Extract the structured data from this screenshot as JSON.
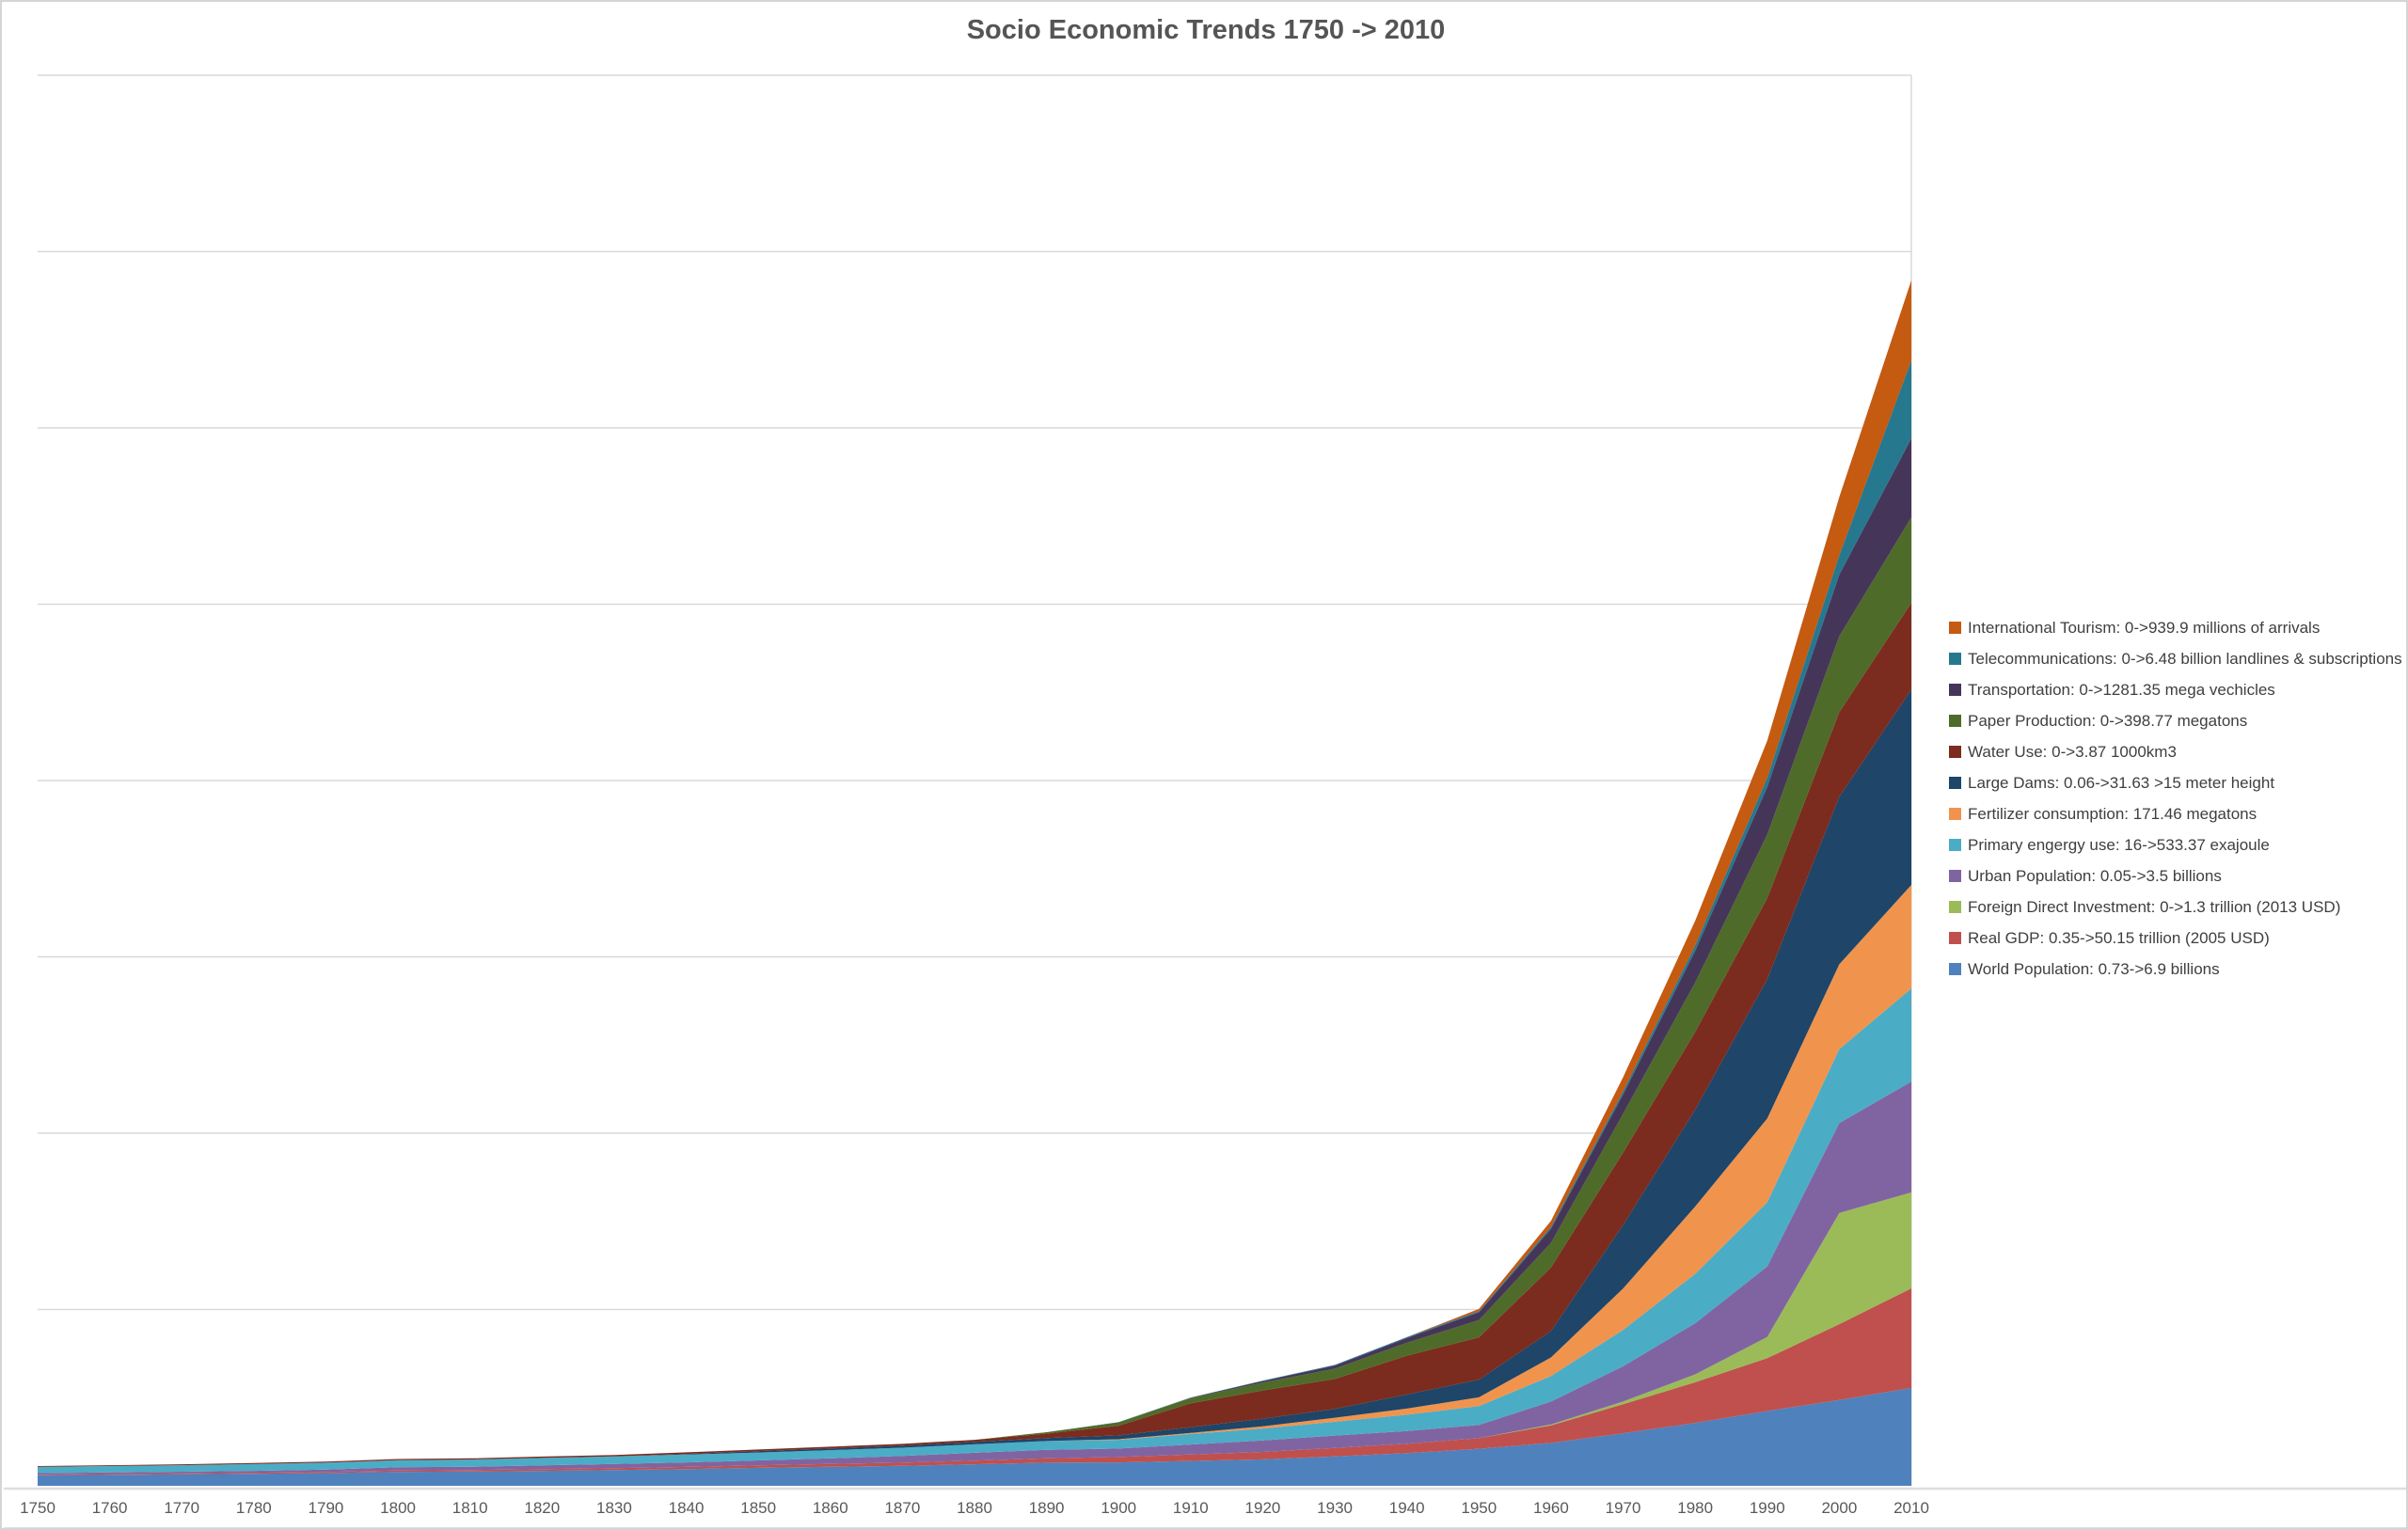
{
  "title": "Socio Economic Trends 1750 -> 2010",
  "theme": {
    "background": "#ffffff",
    "frame_border": "#d5d5d5",
    "gridline": "#d9d9d9",
    "title_color": "#555555",
    "axis_label_color": "#595959",
    "legend_text_color": "#3f3f3f"
  },
  "chart_data": {
    "type": "area",
    "stacked": true,
    "title": "Socio Economic Trends 1750 -> 2010",
    "xlabel": "",
    "ylabel": "",
    "x": [
      1750,
      1760,
      1770,
      1780,
      1790,
      1800,
      1810,
      1820,
      1830,
      1840,
      1850,
      1860,
      1870,
      1880,
      1890,
      1900,
      1910,
      1920,
      1930,
      1940,
      1950,
      1960,
      1970,
      1980,
      1990,
      2000,
      2010
    ],
    "x_tick_labels": [
      "1750",
      "1760",
      "1770",
      "1780",
      "1790",
      "1800",
      "1810",
      "1820",
      "1830",
      "1840",
      "1850",
      "1860",
      "1870",
      "1880",
      "1890",
      "1900",
      "1910",
      "1920",
      "1930",
      "1940",
      "1950",
      "1960",
      "1970",
      "1980",
      "1990",
      "2000",
      "2010"
    ],
    "y_axis": {
      "tick_labels_visible": false,
      "gridline_count": 8,
      "range": [
        0,
        8
      ],
      "unit": "normalized stack units (1 unit = one gridline interval)"
    },
    "legend_position": "right",
    "note": "Series listed bottom-to-top of the stack; the legend displays them in reverse (top of stack first). Values are estimated from the unlabeled axis in gridline units.",
    "series": [
      {
        "name": "world-population",
        "legend": "World Population: 0.73->6.9 billions",
        "color": "#4f81bd",
        "values": [
          0.059,
          0.062,
          0.065,
          0.068,
          0.072,
          0.079,
          0.081,
          0.085,
          0.089,
          0.095,
          0.102,
          0.108,
          0.113,
          0.122,
          0.131,
          0.133,
          0.141,
          0.15,
          0.167,
          0.185,
          0.21,
          0.243,
          0.298,
          0.357,
          0.424,
          0.487,
          0.555
        ]
      },
      {
        "name": "real-gdp",
        "legend": "Real GDP: 0.35->50.15 trillion (2005 USD)",
        "color": "#c0504d",
        "values": [
          0.004,
          0.005,
          0.005,
          0.006,
          0.007,
          0.008,
          0.008,
          0.01,
          0.011,
          0.012,
          0.014,
          0.016,
          0.018,
          0.021,
          0.025,
          0.03,
          0.036,
          0.042,
          0.048,
          0.054,
          0.06,
          0.1,
          0.165,
          0.23,
          0.3,
          0.43,
          0.565
        ]
      },
      {
        "name": "foreign-direct-investment",
        "legend": "Foreign Direct Investment: 0->1.3 trillion (2013 USD)",
        "color": "#9bbb59",
        "values": [
          0,
          0,
          0,
          0,
          0,
          0,
          0,
          0,
          0,
          0,
          0,
          0,
          0,
          0,
          0,
          0,
          0,
          0,
          0,
          0,
          0,
          0.005,
          0.015,
          0.045,
          0.12,
          0.63,
          0.544
        ]
      },
      {
        "name": "urban-population",
        "legend": "Urban Population: 0.05->3.5 billions",
        "color": "#8064a2",
        "values": [
          0.009,
          0.009,
          0.01,
          0.011,
          0.013,
          0.018,
          0.019,
          0.021,
          0.024,
          0.026,
          0.028,
          0.032,
          0.038,
          0.044,
          0.048,
          0.048,
          0.057,
          0.065,
          0.07,
          0.072,
          0.075,
          0.13,
          0.2,
          0.29,
          0.4,
          0.51,
          0.629
        ]
      },
      {
        "name": "primary-energy-use",
        "legend": "Primary engergy use: 16->533.37 exajoule",
        "color": "#4bacc6",
        "values": [
          0.035,
          0.036,
          0.037,
          0.038,
          0.039,
          0.04,
          0.041,
          0.042,
          0.043,
          0.044,
          0.045,
          0.046,
          0.047,
          0.048,
          0.05,
          0.05,
          0.06,
          0.068,
          0.078,
          0.092,
          0.107,
          0.145,
          0.206,
          0.28,
          0.364,
          0.42,
          0.528
        ]
      },
      {
        "name": "fertilizer-consumption",
        "legend": "Fertilizer consumption: 171.46 megatons",
        "color": "#f0944d",
        "values": [
          0,
          0,
          0,
          0,
          0,
          0,
          0,
          0,
          0,
          0,
          0,
          0,
          0,
          0,
          0,
          0.003,
          0.006,
          0.012,
          0.023,
          0.035,
          0.05,
          0.105,
          0.235,
          0.382,
          0.475,
          0.481,
          0.587
        ]
      },
      {
        "name": "large-dams",
        "legend": "Large Dams: 0.06->31.63 >15 meter height",
        "color": "#1f4568",
        "values": [
          0,
          0,
          0,
          0,
          0,
          0,
          0,
          0,
          0,
          0.004,
          0.008,
          0.01,
          0.012,
          0.014,
          0.017,
          0.022,
          0.033,
          0.044,
          0.05,
          0.08,
          0.1,
          0.15,
          0.36,
          0.55,
          0.79,
          0.95,
          1.109
        ]
      },
      {
        "name": "water-use",
        "legend": "Water Use: 0->3.87 1000km3",
        "color": "#7b2c1e",
        "values": [
          0.005,
          0.005,
          0.005,
          0.006,
          0.006,
          0.007,
          0.007,
          0.008,
          0.008,
          0.009,
          0.009,
          0.01,
          0.01,
          0.012,
          0.025,
          0.055,
          0.135,
          0.16,
          0.17,
          0.22,
          0.24,
          0.36,
          0.41,
          0.44,
          0.46,
          0.48,
          0.491
        ]
      },
      {
        "name": "paper-production",
        "legend": "Paper Production: 0->398.77 megatons",
        "color": "#4f6b29",
        "values": [
          0,
          0,
          0,
          0,
          0,
          0,
          0,
          0,
          0,
          0,
          0,
          0,
          0,
          0,
          0.008,
          0.019,
          0.029,
          0.044,
          0.058,
          0.073,
          0.097,
          0.14,
          0.22,
          0.28,
          0.36,
          0.43,
          0.485
        ]
      },
      {
        "name": "transportation",
        "legend": "Transportation: 0->1281.35 mega vechicles",
        "color": "#453659",
        "values": [
          0,
          0,
          0,
          0,
          0,
          0,
          0,
          0,
          0,
          0,
          0,
          0,
          0,
          0,
          0,
          0,
          0.002,
          0.009,
          0.018,
          0.027,
          0.045,
          0.08,
          0.11,
          0.18,
          0.27,
          0.35,
          0.448
        ]
      },
      {
        "name": "telecommunications",
        "legend": "Telecommunications: 0->6.48 billion landlines & subscriptions",
        "color": "#26788f",
        "values": [
          0,
          0,
          0,
          0,
          0,
          0,
          0,
          0,
          0,
          0,
          0,
          0,
          0,
          0,
          0,
          0.001,
          0.002,
          0.003,
          0.004,
          0.005,
          0.007,
          0.011,
          0.018,
          0.031,
          0.053,
          0.11,
          0.443
        ]
      },
      {
        "name": "international-tourism",
        "legend": "International Tourism: 0->939.9 millions of arrivals",
        "color": "#c55a11",
        "values": [
          0,
          0,
          0,
          0,
          0,
          0,
          0,
          0,
          0,
          0,
          0,
          0,
          0,
          0,
          0,
          0,
          0,
          0,
          0,
          0,
          0.012,
          0.034,
          0.08,
          0.14,
          0.21,
          0.33,
          0.453
        ]
      }
    ]
  }
}
